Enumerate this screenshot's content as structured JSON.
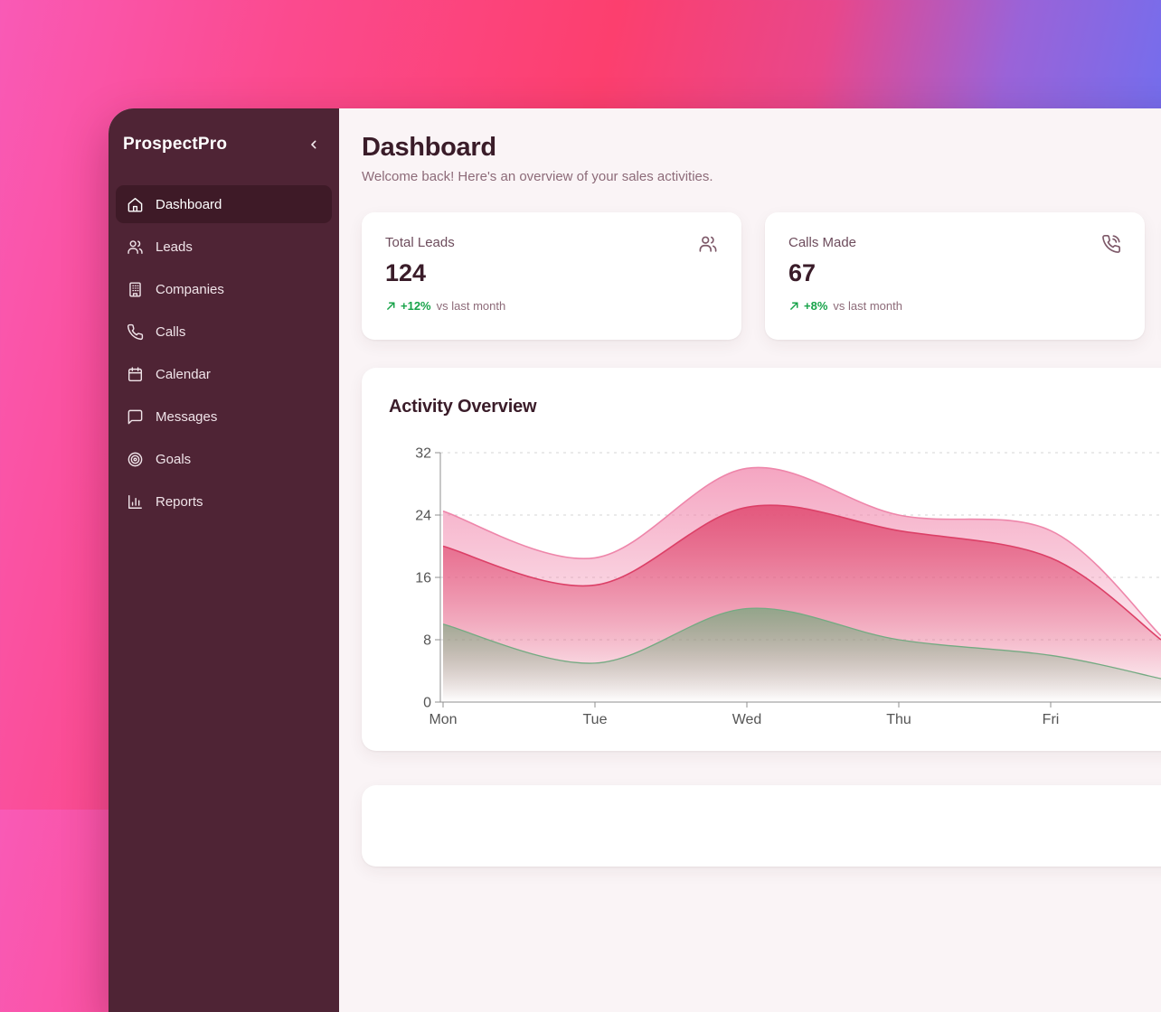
{
  "sidebar": {
    "title": "ProspectPro",
    "items": [
      {
        "label": "Dashboard",
        "icon": "home",
        "active": true
      },
      {
        "label": "Leads",
        "icon": "users",
        "active": false
      },
      {
        "label": "Companies",
        "icon": "building",
        "active": false
      },
      {
        "label": "Calls",
        "icon": "phone",
        "active": false
      },
      {
        "label": "Calendar",
        "icon": "calendar",
        "active": false
      },
      {
        "label": "Messages",
        "icon": "message",
        "active": false
      },
      {
        "label": "Goals",
        "icon": "target",
        "active": false
      },
      {
        "label": "Reports",
        "icon": "bar-chart",
        "active": false
      }
    ],
    "colors": {
      "bg": "#4f2435",
      "active_bg": "#3e1a27",
      "text": "#f0e4e9"
    }
  },
  "header": {
    "title": "Dashboard",
    "subtitle": "Welcome back! Here's an overview of your sales activities."
  },
  "stats": [
    {
      "label": "Total Leads",
      "value": "124",
      "trend": "+12%",
      "trend_suffix": "vs last month",
      "trend_direction": "up",
      "icon": "users"
    },
    {
      "label": "Calls Made",
      "value": "67",
      "trend": "+8%",
      "trend_suffix": "vs last month",
      "trend_direction": "up",
      "icon": "phone-call"
    }
  ],
  "trend_color": "#18a34a",
  "chart_card": {
    "title": "Activity Overview"
  },
  "chart_data": {
    "type": "area",
    "title": "Activity Overview",
    "categories": [
      "Mon",
      "Tue",
      "Wed",
      "Thu",
      "Fri"
    ],
    "series": [
      {
        "name": "outer-band-light-pink",
        "stroke": "#ee86aa",
        "fill": "#f07fa7",
        "values": [
          24.5,
          18.5,
          30,
          24,
          22
        ],
        "right_edge_value": 8.5
      },
      {
        "name": "middle-band-dark-pink",
        "stroke": "#dc4067",
        "fill": "#e14e74",
        "values": [
          20,
          15,
          25,
          22,
          18.5
        ],
        "right_edge_value": 8
      },
      {
        "name": "inner-band-green",
        "stroke": "#74aa82",
        "fill": "#6fa87a",
        "values": [
          10,
          5,
          12,
          8,
          6
        ],
        "right_edge_value": 3
      }
    ],
    "ylim": [
      0,
      32
    ],
    "yticks": [
      0,
      8,
      16,
      24,
      32
    ],
    "grid": "dashed-horizontal",
    "legend": "none",
    "note": "curves continue past Fri and are clipped by the viewport right edge"
  }
}
